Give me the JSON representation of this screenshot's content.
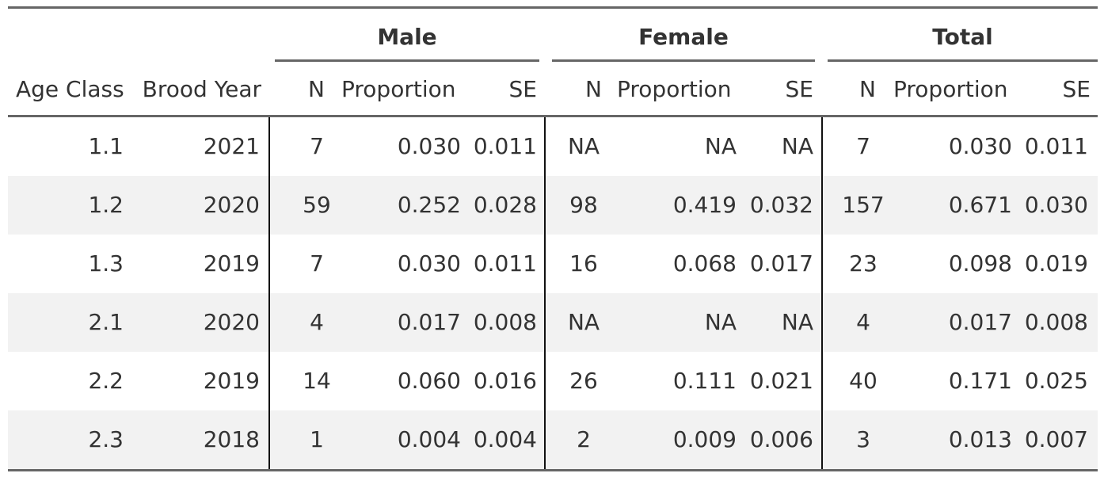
{
  "table": {
    "groups": [
      "Male",
      "Female",
      "Total"
    ],
    "columns": {
      "age_class": "Age Class",
      "brood_year": "Brood Year",
      "n": "N",
      "proportion": "Proportion",
      "se": "SE"
    },
    "rows": [
      {
        "age_class": "1.1",
        "brood_year": "2021",
        "male_n": "7",
        "male_prop": "0.030",
        "male_se": "0.011",
        "female_n": "NA",
        "female_prop": "NA",
        "female_se": "NA",
        "total_n": "7",
        "total_prop": "0.030",
        "total_se": "0.011"
      },
      {
        "age_class": "1.2",
        "brood_year": "2020",
        "male_n": "59",
        "male_prop": "0.252",
        "male_se": "0.028",
        "female_n": "98",
        "female_prop": "0.419",
        "female_se": "0.032",
        "total_n": "157",
        "total_prop": "0.671",
        "total_se": "0.030"
      },
      {
        "age_class": "1.3",
        "brood_year": "2019",
        "male_n": "7",
        "male_prop": "0.030",
        "male_se": "0.011",
        "female_n": "16",
        "female_prop": "0.068",
        "female_se": "0.017",
        "total_n": "23",
        "total_prop": "0.098",
        "total_se": "0.019"
      },
      {
        "age_class": "2.1",
        "brood_year": "2020",
        "male_n": "4",
        "male_prop": "0.017",
        "male_se": "0.008",
        "female_n": "NA",
        "female_prop": "NA",
        "female_se": "NA",
        "total_n": "4",
        "total_prop": "0.017",
        "total_se": "0.008"
      },
      {
        "age_class": "2.2",
        "brood_year": "2019",
        "male_n": "14",
        "male_prop": "0.060",
        "male_se": "0.016",
        "female_n": "26",
        "female_prop": "0.111",
        "female_se": "0.021",
        "total_n": "40",
        "total_prop": "0.171",
        "total_se": "0.025"
      },
      {
        "age_class": "2.3",
        "brood_year": "2018",
        "male_n": "1",
        "male_prop": "0.004",
        "male_se": "0.004",
        "female_n": "2",
        "female_prop": "0.009",
        "female_se": "0.006",
        "total_n": "3",
        "total_prop": "0.013",
        "total_se": "0.007"
      }
    ]
  },
  "colors": {
    "text": "#333333",
    "rule": "#666666",
    "stripe": "#f2f2f2",
    "divider": "#111111"
  }
}
